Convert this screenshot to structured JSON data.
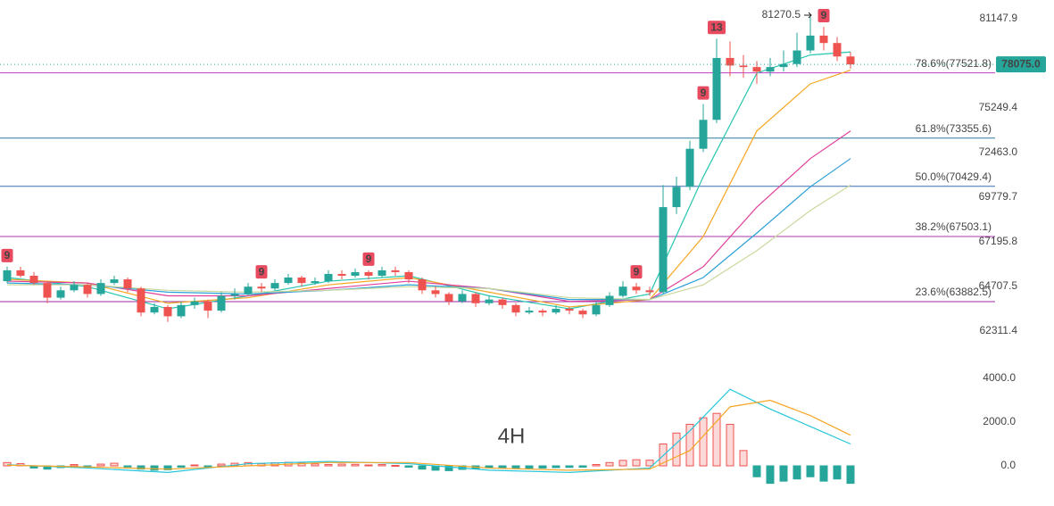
{
  "chart_data": {
    "type": "candlestick",
    "open": [
      65000,
      65600,
      65300,
      64900,
      64100,
      64500,
      64800,
      64300,
      64900,
      65100,
      64600,
      63300,
      63600,
      63100,
      63700,
      63900,
      63400,
      64200,
      64300,
      64700,
      64600,
      64900,
      65200,
      64900,
      65000,
      65400,
      65300,
      65500,
      65300,
      65600,
      65500,
      65100,
      64500,
      64300,
      63900,
      64300,
      63800,
      64000,
      63700,
      63300,
      63400,
      63300,
      63500,
      63400,
      63200,
      63700,
      64200,
      64700,
      64500,
      64400,
      69200,
      70400,
      72700,
      74500,
      78500,
      78000,
      77900,
      77600,
      77900,
      78100,
      79000,
      80000,
      79500,
      78600
    ],
    "high": [
      65800,
      65800,
      65500,
      65000,
      64700,
      65000,
      64900,
      65100,
      65300,
      65200,
      64700,
      63800,
      63700,
      63900,
      64100,
      64000,
      64400,
      64600,
      64900,
      64900,
      65100,
      65400,
      65300,
      65200,
      65600,
      65600,
      65700,
      65600,
      65800,
      65800,
      65600,
      65200,
      64700,
      64400,
      64500,
      64400,
      64200,
      64100,
      63800,
      63600,
      63500,
      63700,
      63600,
      63500,
      63900,
      64400,
      65000,
      64900,
      64700,
      70500,
      71000,
      73200,
      75500,
      79800,
      79600,
      78700,
      78300,
      78500,
      79000,
      80200,
      81270.5,
      80600,
      79900,
      78900
    ],
    "low": [
      64900,
      65200,
      64800,
      63800,
      64000,
      64400,
      64100,
      64200,
      64800,
      64400,
      63100,
      63200,
      62800,
      63000,
      63500,
      63000,
      63300,
      64000,
      64200,
      64400,
      64500,
      64800,
      64700,
      64800,
      64900,
      65100,
      65200,
      65100,
      65200,
      65300,
      64900,
      64300,
      64100,
      63700,
      63800,
      63600,
      63700,
      63500,
      63100,
      63200,
      63100,
      63200,
      63200,
      63000,
      63100,
      63600,
      64100,
      64300,
      64200,
      64300,
      68800,
      70200,
      72500,
      74300,
      77300,
      77200,
      76800,
      77300,
      77600,
      77900,
      78800,
      79000,
      78300,
      77800
    ],
    "close": [
      65600,
      65300,
      64900,
      64100,
      64500,
      64800,
      64300,
      64900,
      65100,
      64600,
      63300,
      63600,
      63100,
      63700,
      63900,
      63400,
      64200,
      64300,
      64700,
      64600,
      64900,
      65200,
      64900,
      65000,
      65400,
      65300,
      65500,
      65300,
      65600,
      65500,
      65100,
      64500,
      64300,
      63900,
      64300,
      63800,
      64000,
      63700,
      63300,
      63400,
      63300,
      63500,
      63400,
      63200,
      63700,
      64200,
      64700,
      64500,
      64400,
      69200,
      70400,
      72700,
      74500,
      78500,
      78000,
      77900,
      77600,
      77900,
      78100,
      79000,
      80000,
      79500,
      78600,
      78075
    ],
    "up_color": "#26a69a",
    "down_color": "#ef5350",
    "ylim": [
      60736,
      82444
    ],
    "log_scale": true,
    "yticks": [
      81147.9,
      75249.4,
      {
        "value": 72463.0,
        "label": "72463.0"
      },
      69779.7,
      67195.8,
      64707.5,
      62311.4
    ],
    "moving_averages": [
      {
        "color": "#26c6b0",
        "x": [
          0,
          6,
          12,
          18,
          24,
          30,
          36,
          42,
          48,
          52,
          56,
          60,
          63
        ],
        "values": [
          65200,
          64700,
          63500,
          64200,
          65000,
          65300,
          64200,
          63500,
          64300,
          71000,
          77500,
          78700,
          78900
        ]
      },
      {
        "color": "#f5a623",
        "x": [
          0,
          6,
          12,
          18,
          24,
          30,
          36,
          42,
          48,
          52,
          56,
          60,
          63
        ],
        "values": [
          65100,
          64900,
          63800,
          64100,
          64800,
          65200,
          64400,
          63600,
          64000,
          67500,
          73800,
          76800,
          77700
        ]
      },
      {
        "color": "#e0409a",
        "x": [
          0,
          6,
          12,
          18,
          24,
          30,
          36,
          42,
          48,
          52,
          56,
          60,
          63
        ],
        "values": [
          65000,
          64900,
          64200,
          64200,
          64600,
          65000,
          64600,
          63900,
          64000,
          65800,
          69200,
          72100,
          73800
        ]
      },
      {
        "color": "#2a9fd8",
        "x": [
          0,
          6,
          12,
          18,
          24,
          30,
          36,
          42,
          48,
          52,
          56,
          60,
          63
        ],
        "values": [
          64900,
          64800,
          64400,
          64300,
          64500,
          64800,
          64600,
          64000,
          64000,
          65200,
          67700,
          70400,
          72100
        ]
      },
      {
        "color": "#c9d99e",
        "x": [
          0,
          6,
          12,
          18,
          24,
          30,
          36,
          42,
          48,
          52,
          56,
          60,
          63
        ],
        "values": [
          64800,
          64800,
          64500,
          64400,
          64500,
          64700,
          64600,
          64100,
          64000,
          64800,
          66700,
          69000,
          70500
        ]
      }
    ],
    "fib_levels": [
      {
        "label": "78.6%(77521.8)",
        "value": 77521.8,
        "color": "#c03cc0"
      },
      {
        "label": "61.8%(73355.6)",
        "value": 73355.6,
        "color": "#2a7a9a"
      },
      {
        "label": "50.0%(70429.4)",
        "value": 70429.4,
        "color": "#3a6fb0"
      },
      {
        "label": "38.2%(67503.1)",
        "value": 67503.1,
        "color": "#a83aa8"
      },
      {
        "label": "23.6%(63882.5)",
        "value": 63882.5,
        "color": "#9a2aa0"
      }
    ],
    "last_price": {
      "value": 78075.0,
      "label": "78075.0",
      "color": "#26a69a"
    },
    "peak_label": {
      "value": 81270.5,
      "label": "81270.5"
    },
    "td_marks": [
      {
        "x": 0,
        "label": "9"
      },
      {
        "x": 19,
        "label": "9"
      },
      {
        "x": 27,
        "label": "9"
      },
      {
        "x": 47,
        "label": "9"
      },
      {
        "x": 52,
        "label": "9"
      },
      {
        "x": 53,
        "label": "13"
      },
      {
        "x": 61,
        "label": "9"
      }
    ],
    "macd": {
      "ylim": [
        -1551,
        4776
      ],
      "yticks": [
        {
          "value": 4000,
          "label": "4000.0"
        },
        {
          "value": 2000,
          "label": "2000.0"
        },
        {
          "value": 0,
          "label": "0.0"
        }
      ],
      "histogram": [
        150,
        100,
        -100,
        -150,
        -80,
        60,
        -60,
        80,
        120,
        -50,
        -150,
        -200,
        -180,
        -60,
        40,
        -40,
        80,
        120,
        150,
        100,
        140,
        160,
        120,
        90,
        60,
        80,
        70,
        40,
        60,
        20,
        -60,
        -150,
        -200,
        -220,
        -160,
        -140,
        -100,
        -90,
        -120,
        -110,
        -100,
        -80,
        -70,
        -60,
        60,
        150,
        250,
        280,
        260,
        1000,
        1500,
        1900,
        2200,
        2400,
        1900,
        700,
        -500,
        -800,
        -700,
        -600,
        -500,
        -700,
        -600,
        -800
      ],
      "up_color": "#ef5350",
      "down_color": "#26a69a",
      "lines": [
        {
          "color": "#26c6da",
          "x": [
            0,
            6,
            12,
            18,
            24,
            30,
            36,
            42,
            48,
            51,
            54,
            57,
            60,
            63
          ],
          "values": [
            50,
            -100,
            -300,
            100,
            200,
            100,
            -200,
            -300,
            -100,
            1600,
            3500,
            2600,
            1800,
            1000
          ]
        },
        {
          "color": "#f5a623",
          "x": [
            0,
            6,
            12,
            18,
            24,
            30,
            36,
            42,
            48,
            51,
            54,
            57,
            60,
            63
          ],
          "values": [
            30,
            -50,
            -150,
            0,
            150,
            150,
            -100,
            -200,
            -150,
            700,
            2700,
            3000,
            2300,
            1400
          ]
        }
      ],
      "interval_label": "4H"
    }
  }
}
